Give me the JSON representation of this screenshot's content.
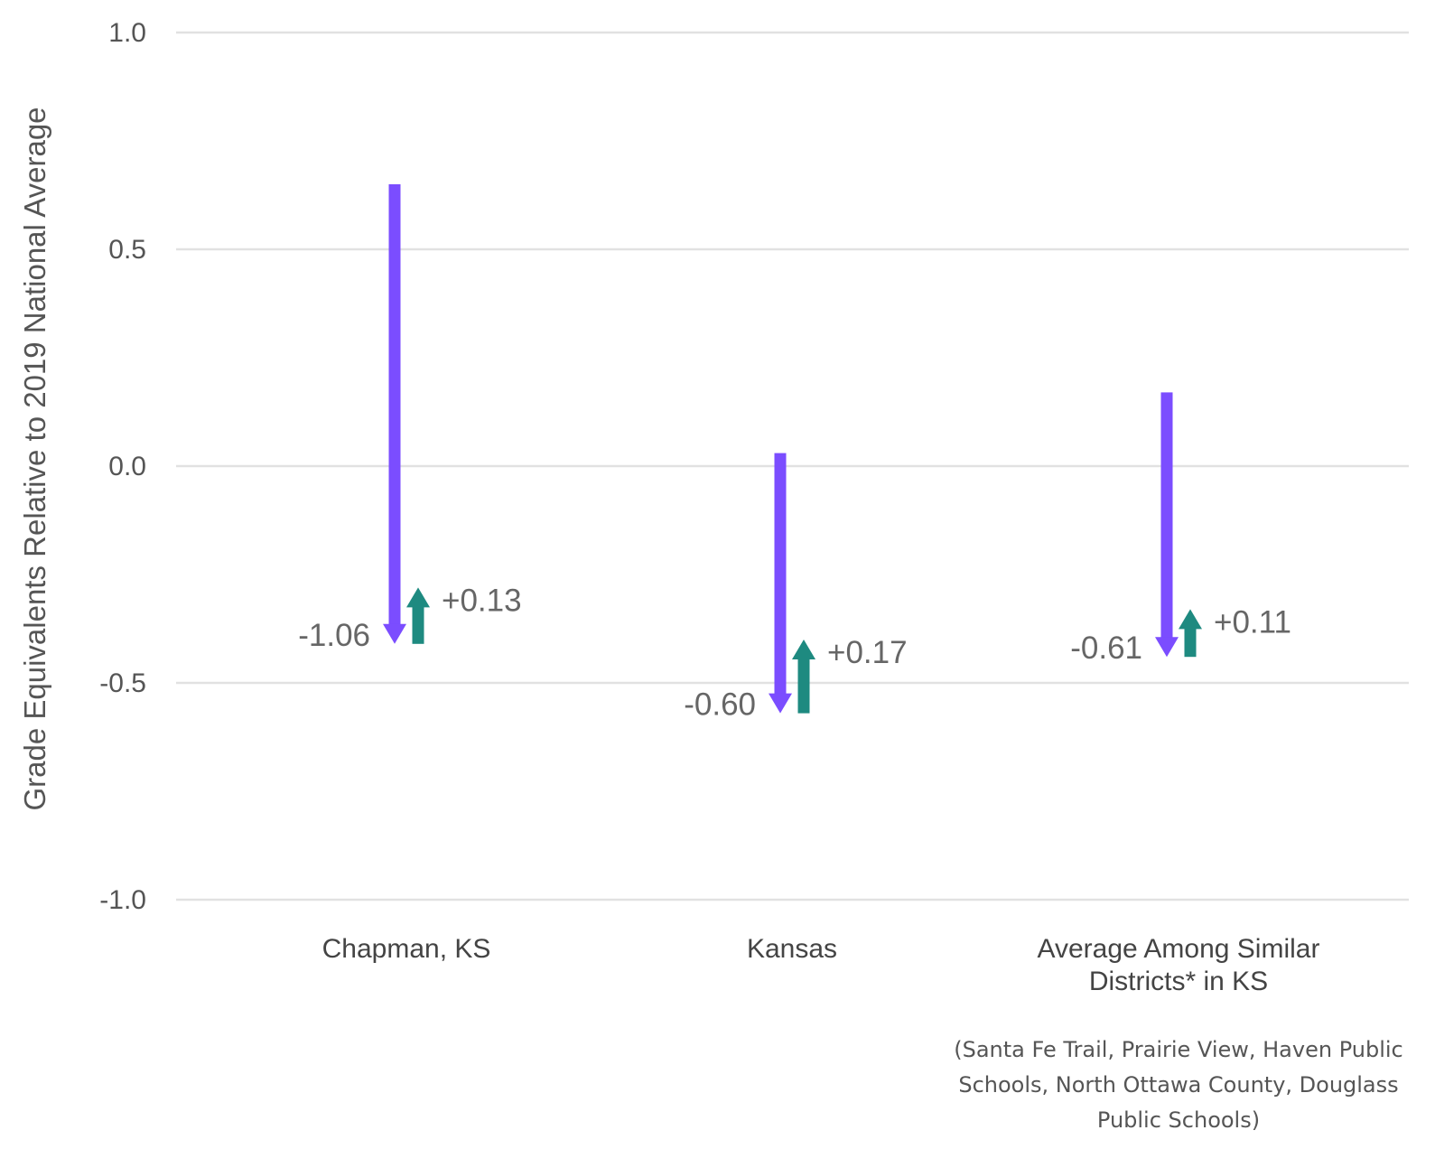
{
  "chart_data": {
    "type": "arrow",
    "ylabel": "Grade Equivalents Relative to 2019 National Average",
    "xlabel": "",
    "ylim": [
      -1.0,
      1.0
    ],
    "yticks": [
      1.0,
      0.5,
      0.0,
      -0.5,
      -1.0
    ],
    "ytick_labels": [
      "1.0",
      "0.5",
      "0.0",
      "-0.5",
      "-1.0"
    ],
    "grid": true,
    "categories": [
      {
        "label_lines": [
          "Chapman, KS"
        ],
        "start": 0.65,
        "decline": -1.06,
        "decline_label": "-1.06",
        "recovery": 0.13,
        "recovery_label": "+0.13"
      },
      {
        "label_lines": [
          "Kansas"
        ],
        "start": 0.03,
        "decline": -0.6,
        "decline_label": "-0.60",
        "recovery": 0.17,
        "recovery_label": "+0.17"
      },
      {
        "label_lines": [
          "Average Among Similar",
          "Districts* in KS"
        ],
        "start": 0.17,
        "decline": -0.61,
        "decline_label": "-0.61",
        "recovery": 0.11,
        "recovery_label": "+0.11"
      }
    ],
    "footnote_lines": [
      "(Santa Fe Trail, Prairie View, Haven Public",
      "Schools, North Ottawa County, Douglass",
      "Public Schools)"
    ],
    "colors": {
      "decline": "#7b4dff",
      "recovery": "#1e8a80",
      "grid": "#e1e1e1"
    }
  }
}
